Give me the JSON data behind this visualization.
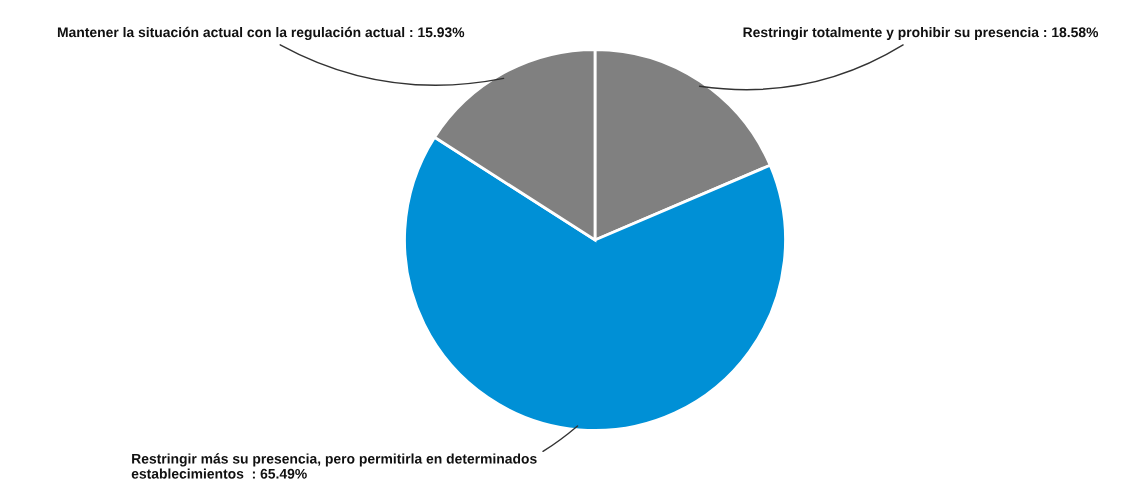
{
  "chart_data": {
    "type": "pie",
    "categories": [
      "Restringir totalmente y prohibir su presencia",
      "Restringir más su presencia, pero permitirla en determinados\nestablecimientos ",
      "Mantener la situación actual con la regulación actual"
    ],
    "values": [
      18.58,
      65.49,
      15.93
    ],
    "value_labels": [
      "18.58%",
      "65.49%",
      "15.93%"
    ],
    "colors": [
      "#808080",
      "#0090d6",
      "#808080"
    ],
    "legend": false
  }
}
